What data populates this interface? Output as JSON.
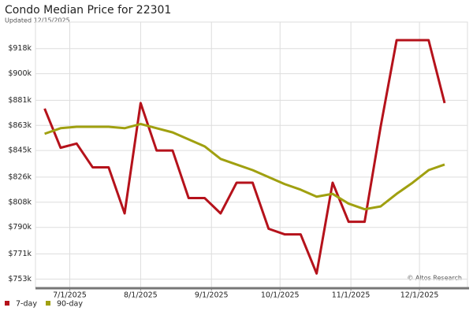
{
  "chart_data": {
    "type": "line",
    "title": "Condo Median Price for 22301",
    "subtitle": "Updated 12/15/2025",
    "annotation": "© Altos Research",
    "x": [
      "6/20/2025",
      "6/27/2025",
      "7/4/2025",
      "7/11/2025",
      "7/18/2025",
      "7/25/2025",
      "8/1/2025",
      "8/8/2025",
      "8/15/2025",
      "8/22/2025",
      "8/29/2025",
      "9/5/2025",
      "9/12/2025",
      "9/19/2025",
      "9/26/2025",
      "10/3/2025",
      "10/10/2025",
      "10/17/2025",
      "10/24/2025",
      "10/31/2025",
      "11/7/2025",
      "11/14/2025",
      "11/21/2025",
      "11/28/2025",
      "12/5/2025",
      "12/12/2025"
    ],
    "series": [
      {
        "name": "7-day",
        "color": "#b5121b",
        "values": [
          875,
          847,
          850,
          833,
          833,
          800,
          879,
          845,
          845,
          811,
          811,
          800,
          822,
          822,
          789,
          785,
          785,
          757,
          822,
          794,
          794,
          862,
          924,
          924,
          924,
          879
        ]
      },
      {
        "name": "90-day",
        "color": "#a0a010",
        "values": [
          857,
          861,
          862,
          862,
          862,
          861,
          864,
          861,
          858,
          853,
          848,
          839,
          835,
          831,
          826,
          821,
          817,
          812,
          814,
          807,
          803,
          805,
          814,
          822,
          831,
          835
        ]
      }
    ],
    "xlim": [
      "6/16/2025",
      "12/22/2025"
    ],
    "xticks": [
      "7/1/2025",
      "8/1/2025",
      "9/1/2025",
      "10/1/2025",
      "11/1/2025",
      "12/1/2025"
    ],
    "ylim": [
      747,
      937
    ],
    "yticks": [
      {
        "value": 753,
        "label": "$753k"
      },
      {
        "value": 771,
        "label": "$771k"
      },
      {
        "value": 790,
        "label": "$790k"
      },
      {
        "value": 808,
        "label": "$808k"
      },
      {
        "value": 826,
        "label": "$826k"
      },
      {
        "value": 845,
        "label": "$845k"
      },
      {
        "value": 863,
        "label": "$863k"
      },
      {
        "value": 881,
        "label": "$881k"
      },
      {
        "value": 900,
        "label": "$900k"
      },
      {
        "value": 918,
        "label": "$918k"
      }
    ],
    "grid": true,
    "legend": "bottom-left"
  }
}
